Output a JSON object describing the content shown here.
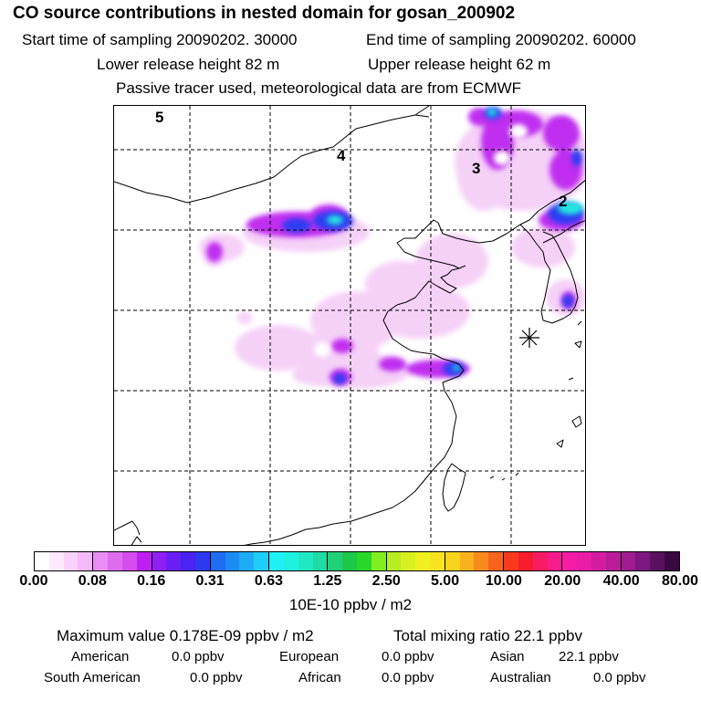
{
  "header": {
    "title": "CO  source contributions in nested domain for gosan_200902",
    "start_label": "Start time of sampling 20090202. 30000",
    "end_label": "End time of sampling 20090202. 60000",
    "lower_label": "Lower release height   82 m",
    "upper_label": "Upper release height   62 m",
    "note": "Passive tracer used, meteorological data are from ECMWF"
  },
  "map": {
    "source_markers": [
      "5",
      "4",
      "3",
      "2"
    ],
    "receptor_symbol": "star-marker"
  },
  "colorbar": {
    "groups": [
      [
        "#ffffff",
        "#fde8fd",
        "#f9d2fb",
        "#f4b9f8"
      ],
      [
        "#e98ef2",
        "#df6cef",
        "#d44cec",
        "#bd1ff0"
      ],
      [
        "#8f1ff5",
        "#6a1ef5",
        "#4a22f4",
        "#2c39f2"
      ],
      [
        "#1d6cf2",
        "#1c8cf4",
        "#1cacf6",
        "#20cdf8"
      ],
      [
        "#1ff0f6",
        "#1ff0e0",
        "#1fe8c4",
        "#1fdca4"
      ],
      [
        "#1fd078",
        "#1cc84a",
        "#28d828",
        "#80ee20"
      ],
      [
        "#b8ee20",
        "#d8f020",
        "#f0f020",
        "#f8e41e"
      ],
      [
        "#f9d31c",
        "#f9b21c",
        "#f98a1c",
        "#f9641c"
      ],
      [
        "#f93a1c",
        "#f91c2c",
        "#f91c64",
        "#f91c8c"
      ],
      [
        "#f51ca6",
        "#ea1ca6",
        "#d41ca0",
        "#b81c98"
      ],
      [
        "#a01c90",
        "#7c1880",
        "#5a1060",
        "#3a0840"
      ]
    ],
    "ticks": [
      "0.00",
      "0.08",
      "0.16",
      "0.31",
      "0.63",
      "1.25",
      "2.50",
      "5.00",
      "10.00",
      "20.00",
      "40.00",
      "80.00"
    ],
    "units": "10E-10 ppbv / m2"
  },
  "footer": {
    "max_label": "Maximum value  0.178E-09 ppbv / m2",
    "total_label": "Total mixing ratio       22.1 ppbv",
    "rows": [
      [
        "American",
        "0.0 ppbv",
        "European",
        "0.0 ppbv",
        "Asian",
        "22.1 ppbv"
      ],
      [
        "South American",
        "0.0 ppbv",
        "African",
        "0.0 ppbv",
        "Australian",
        "0.0 ppbv"
      ]
    ]
  }
}
